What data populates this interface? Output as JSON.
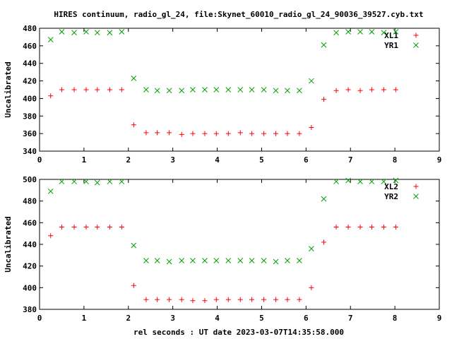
{
  "title": "HIRES continuum, radio_gl_24, file:Skynet_60010_radio_gl_24_90036_39527.cyb.txt",
  "xlabel": "rel seconds : UT date 2023-03-07T14:35:58.000",
  "colors": {
    "xl": "#ff0000",
    "yr": "#00a000",
    "axis": "#000000"
  },
  "chart_data": [
    {
      "type": "scatter",
      "ylabel": "Uncalibrated",
      "xlim": [
        0,
        9
      ],
      "ylim": [
        340,
        480
      ],
      "xticks": [
        0,
        1,
        2,
        3,
        4,
        5,
        6,
        7,
        8,
        9
      ],
      "yticks": [
        340,
        360,
        380,
        400,
        420,
        440,
        460,
        480
      ],
      "grid": false,
      "legend_position": "top-right",
      "series": [
        {
          "name": "XL1",
          "marker": "plus",
          "color": "#ff0000",
          "x": [
            0.25,
            0.5,
            0.78,
            1.05,
            1.3,
            1.58,
            1.85,
            2.12,
            2.4,
            2.65,
            2.92,
            3.2,
            3.45,
            3.72,
            3.98,
            4.25,
            4.52,
            4.78,
            5.05,
            5.32,
            5.58,
            5.85,
            6.12,
            6.4,
            6.68,
            6.95,
            7.22,
            7.48,
            7.75,
            8.02
          ],
          "y": [
            403,
            410,
            410,
            410,
            410,
            410,
            410,
            370,
            361,
            361,
            361,
            359,
            360,
            360,
            360,
            360,
            361,
            360,
            360,
            360,
            360,
            360,
            367,
            399,
            409,
            410,
            409,
            410,
            410,
            410
          ]
        },
        {
          "name": "YR1",
          "marker": "cross",
          "color": "#00a000",
          "x": [
            0.25,
            0.5,
            0.78,
            1.05,
            1.3,
            1.58,
            1.85,
            2.12,
            2.4,
            2.65,
            2.92,
            3.2,
            3.45,
            3.72,
            3.98,
            4.25,
            4.52,
            4.78,
            5.05,
            5.32,
            5.58,
            5.85,
            6.12,
            6.4,
            6.68,
            6.95,
            7.22,
            7.48,
            7.75,
            8.02
          ],
          "y": [
            467,
            476,
            475,
            476,
            475,
            475,
            476,
            423,
            410,
            409,
            409,
            409,
            410,
            410,
            410,
            410,
            410,
            410,
            410,
            409,
            409,
            409,
            420,
            461,
            475,
            476,
            476,
            476,
            475,
            476
          ]
        }
      ]
    },
    {
      "type": "scatter",
      "ylabel": "Uncalibrated",
      "xlim": [
        0,
        9
      ],
      "ylim": [
        380,
        500
      ],
      "xticks": [
        0,
        1,
        2,
        3,
        4,
        5,
        6,
        7,
        8,
        9
      ],
      "yticks": [
        380,
        400,
        420,
        440,
        460,
        480,
        500
      ],
      "grid": false,
      "legend_position": "top-right",
      "series": [
        {
          "name": "XL2",
          "marker": "plus",
          "color": "#ff0000",
          "x": [
            0.25,
            0.5,
            0.78,
            1.05,
            1.3,
            1.58,
            1.85,
            2.12,
            2.4,
            2.65,
            2.92,
            3.2,
            3.45,
            3.72,
            3.98,
            4.25,
            4.52,
            4.78,
            5.05,
            5.32,
            5.58,
            5.85,
            6.12,
            6.4,
            6.68,
            6.95,
            7.22,
            7.48,
            7.75,
            8.02
          ],
          "y": [
            448,
            456,
            456,
            456,
            456,
            456,
            456,
            402,
            389,
            389,
            389,
            389,
            388,
            388,
            389,
            389,
            389,
            389,
            389,
            389,
            389,
            389,
            400,
            442,
            456,
            456,
            456,
            456,
            456,
            456
          ]
        },
        {
          "name": "YR2",
          "marker": "cross",
          "color": "#00a000",
          "x": [
            0.25,
            0.5,
            0.78,
            1.05,
            1.3,
            1.58,
            1.85,
            2.12,
            2.4,
            2.65,
            2.92,
            3.2,
            3.45,
            3.72,
            3.98,
            4.25,
            4.52,
            4.78,
            5.05,
            5.32,
            5.58,
            5.85,
            6.12,
            6.4,
            6.68,
            6.95,
            7.22,
            7.48,
            7.75,
            8.02
          ],
          "y": [
            489,
            498,
            498,
            498,
            497,
            498,
            498,
            439,
            425,
            425,
            424,
            425,
            425,
            425,
            425,
            425,
            425,
            425,
            425,
            424,
            425,
            425,
            436,
            482,
            498,
            499,
            498,
            498,
            498,
            499
          ]
        }
      ]
    }
  ]
}
